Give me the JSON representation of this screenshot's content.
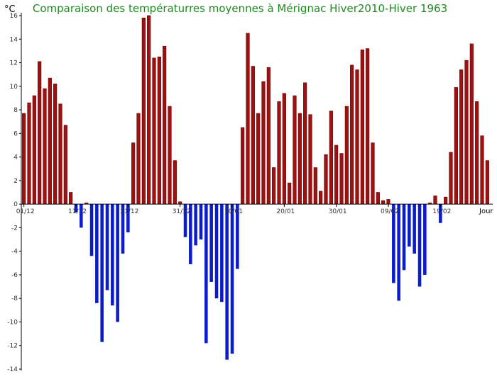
{
  "chart_data": {
    "type": "bar",
    "title": "Comparaison des températurres moyennes à Mérignac Hiver2010-Hiver 1963",
    "ylabel": "°C",
    "xlabel": "Jour",
    "ylim": [
      -14,
      16
    ],
    "yticks": [
      16,
      14,
      12,
      10,
      8,
      6,
      4,
      2,
      0,
      -2,
      -4,
      -6,
      -8,
      -10,
      -12,
      -14
    ],
    "xtick_labels": [
      {
        "label": "01/12",
        "index": 0
      },
      {
        "label": "11/12",
        "index": 10
      },
      {
        "label": "21/12",
        "index": 20
      },
      {
        "label": "31/12",
        "index": 30
      },
      {
        "label": "10/01",
        "index": 40
      },
      {
        "label": "20/01",
        "index": 50
      },
      {
        "label": "30/01",
        "index": 60
      },
      {
        "label": "09/02",
        "index": 70
      },
      {
        "label": "19/02",
        "index": 80
      }
    ],
    "colors": {
      "positive": "#a01010",
      "negative": "#0a1ccc"
    },
    "values": [
      7.7,
      8.6,
      9.2,
      12.1,
      9.8,
      10.7,
      10.2,
      8.5,
      6.7,
      1.0,
      -0.7,
      -2.0,
      0.1,
      -4.4,
      -8.4,
      -11.7,
      -7.3,
      -8.6,
      -10.0,
      -4.2,
      -2.4,
      5.2,
      7.7,
      15.8,
      16.0,
      12.4,
      12.5,
      13.4,
      8.3,
      3.7,
      0.2,
      -2.8,
      -5.1,
      -3.5,
      -3.0,
      -11.8,
      -6.6,
      -8.0,
      -8.3,
      -13.2,
      -12.7,
      -5.5,
      6.5,
      14.5,
      11.7,
      7.7,
      10.4,
      11.6,
      3.1,
      8.7,
      9.4,
      1.8,
      9.2,
      7.7,
      10.3,
      7.6,
      3.1,
      1.1,
      4.2,
      7.9,
      5.0,
      4.3,
      8.3,
      11.8,
      11.4,
      13.1,
      13.2,
      5.2,
      1.0,
      0.3,
      0.4,
      -6.7,
      -8.2,
      -5.6,
      -3.6,
      -4.2,
      -7.0,
      -6.0,
      0.1,
      0.7,
      -1.6,
      0.6,
      4.4,
      9.9,
      11.4,
      12.2,
      13.6,
      8.7,
      5.8,
      3.7
    ],
    "grid": false
  }
}
